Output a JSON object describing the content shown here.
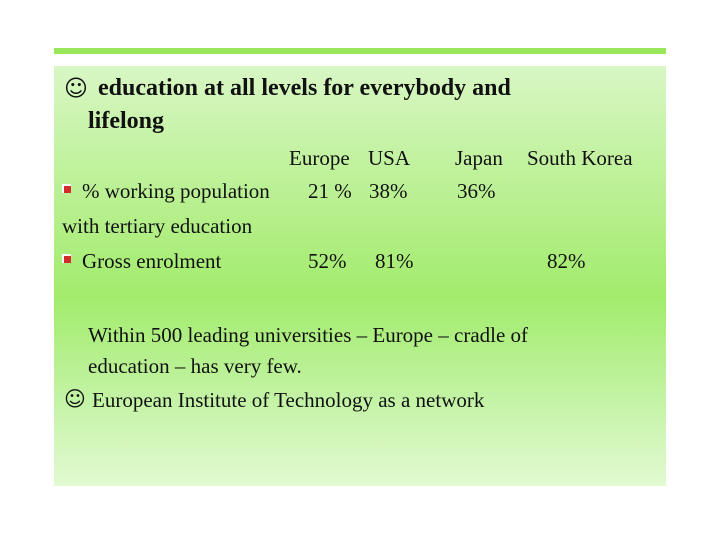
{
  "heading": {
    "symbol": "☺",
    "line1": "education at all levels for everybody and",
    "line2": "lifelong"
  },
  "table": {
    "columns": [
      "Europe",
      "USA",
      "Japan",
      "South Korea"
    ],
    "rows": [
      {
        "label_line1": "% working population",
        "label_line2": "with tertiary education",
        "values": [
          "21 %",
          "38%",
          "36%",
          ""
        ]
      },
      {
        "label_line1": "Gross enrolment",
        "values": [
          "52%",
          "81%",
          "",
          "82%"
        ]
      }
    ]
  },
  "notes": {
    "line1": "Within 500 leading universities – Europe – cradle of",
    "line2": "education – has very few.",
    "symbol": "☺",
    "line3": "European Institute of Technology as a network"
  },
  "colors": {
    "rule": "#99e65a",
    "panel": "#a2ec6c",
    "bullet": "#d42a2a"
  }
}
